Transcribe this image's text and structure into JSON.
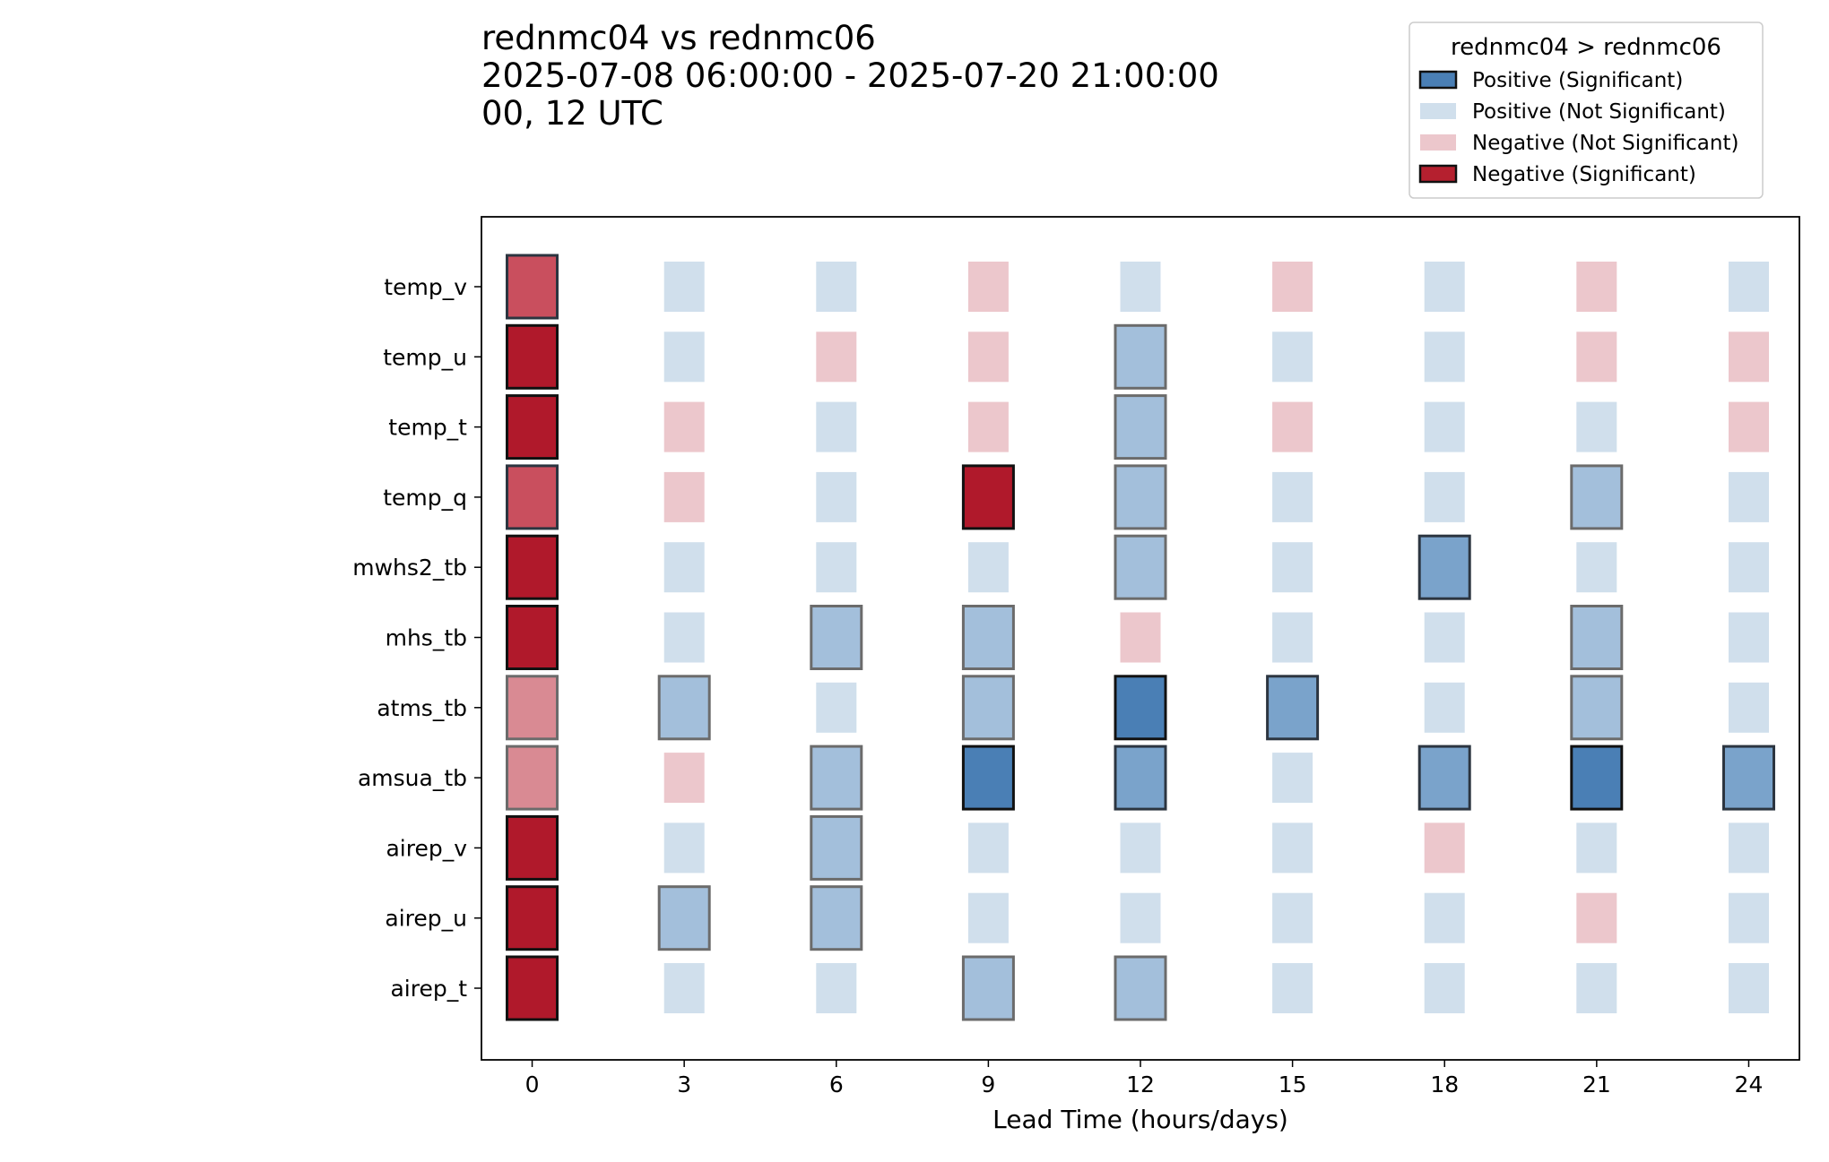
{
  "chart_data": {
    "type": "heatmap",
    "title_lines": [
      "rednmc04 vs rednmc06",
      "2025-07-08 06:00:00 - 2025-07-20 21:00:00",
      "00, 12 UTC"
    ],
    "xlabel": "Lead Time (hours/days)",
    "ylabel": "",
    "x": [
      0,
      3,
      6,
      9,
      12,
      15,
      18,
      21,
      24
    ],
    "x_tick_labels": [
      "0",
      "3",
      "6",
      "9",
      "12",
      "15",
      "18",
      "21",
      "24"
    ],
    "y_categories": [
      "temp_v",
      "temp_u",
      "temp_t",
      "temp_q",
      "mwhs2_tb",
      "mhs_tb",
      "atms_tb",
      "amsua_tb",
      "airep_v",
      "airep_u",
      "airep_t"
    ],
    "legend": {
      "title": "rednmc04 > rednmc06",
      "placement": "top-right",
      "entries": [
        {
          "label": "Positive (Significant)",
          "color": "#4a7fb5",
          "outlined": true
        },
        {
          "label": "Positive (Not Significant)",
          "color": "#d0dfec",
          "outlined": false
        },
        {
          "label": "Negative (Not Significant)",
          "color": "#ecc7cc",
          "outlined": false
        },
        {
          "label": "Negative (Significant)",
          "color": "#b5202f",
          "outlined": true
        }
      ]
    },
    "colors": {
      "positive_significant_strong": "#4a7fb5",
      "positive_significant_mid": "#7aa3cb",
      "positive_significant_weak": "#a3bfdb",
      "positive_not_significant": "#d0dfec",
      "negative_not_significant": "#ecc7cc",
      "negative_significant_weak": "#d98a93",
      "negative_significant_mid": "#c94f5e",
      "negative_significant_strong": "#b0192b"
    },
    "series": [
      {
        "row": "temp_v",
        "values": [
          -0.75,
          0.2,
          0.2,
          -0.2,
          0.2,
          -0.2,
          0.2,
          -0.2,
          0.2
        ]
      },
      {
        "row": "temp_u",
        "values": [
          -1.0,
          0.2,
          -0.2,
          -0.2,
          0.4,
          0.2,
          0.2,
          -0.2,
          -0.2
        ]
      },
      {
        "row": "temp_t",
        "values": [
          -1.0,
          -0.2,
          0.2,
          -0.2,
          0.4,
          -0.2,
          0.2,
          0.2,
          -0.2
        ]
      },
      {
        "row": "temp_q",
        "values": [
          -0.7,
          -0.2,
          0.2,
          -1.0,
          0.4,
          0.2,
          0.2,
          0.55,
          0.2
        ]
      },
      {
        "row": "mwhs2_tb",
        "values": [
          -1.0,
          0.2,
          0.2,
          0.2,
          0.4,
          0.2,
          0.75,
          0.2,
          0.2
        ]
      },
      {
        "row": "mhs_tb",
        "values": [
          -1.0,
          0.2,
          0.4,
          0.45,
          -0.2,
          0.2,
          0.2,
          0.5,
          0.2
        ]
      },
      {
        "row": "atms_tb",
        "values": [
          -0.5,
          0.45,
          0.2,
          0.4,
          1.0,
          0.8,
          0.2,
          0.5,
          0.2
        ]
      },
      {
        "row": "amsua_tb",
        "values": [
          -0.5,
          -0.2,
          0.45,
          0.95,
          0.65,
          0.2,
          0.65,
          1.0,
          0.65
        ]
      },
      {
        "row": "airep_v",
        "values": [
          -1.0,
          0.2,
          0.4,
          0.2,
          0.2,
          0.2,
          -0.2,
          0.2,
          0.2
        ]
      },
      {
        "row": "airep_u",
        "values": [
          -1.0,
          0.4,
          0.4,
          0.2,
          0.2,
          0.2,
          0.2,
          -0.2,
          0.2
        ]
      },
      {
        "row": "airep_t",
        "values": [
          -1.0,
          0.2,
          0.2,
          0.4,
          0.4,
          0.2,
          0.2,
          0.2,
          0.2
        ]
      }
    ],
    "significant": [
      [
        true,
        false,
        false,
        false,
        false,
        false,
        false,
        false,
        false
      ],
      [
        true,
        false,
        false,
        false,
        true,
        false,
        false,
        false,
        false
      ],
      [
        true,
        false,
        false,
        false,
        true,
        false,
        false,
        false,
        false
      ],
      [
        true,
        false,
        false,
        true,
        true,
        false,
        false,
        true,
        false
      ],
      [
        true,
        false,
        false,
        false,
        true,
        false,
        true,
        false,
        false
      ],
      [
        true,
        false,
        true,
        true,
        false,
        false,
        false,
        true,
        false
      ],
      [
        true,
        true,
        false,
        true,
        true,
        true,
        false,
        true,
        false
      ],
      [
        true,
        false,
        true,
        true,
        true,
        false,
        true,
        true,
        true
      ],
      [
        true,
        false,
        true,
        false,
        false,
        false,
        false,
        false,
        false
      ],
      [
        true,
        true,
        true,
        false,
        false,
        false,
        false,
        false,
        false
      ],
      [
        true,
        false,
        false,
        true,
        true,
        false,
        false,
        false,
        false
      ]
    ],
    "xlim": [
      -1,
      25
    ],
    "grid": false
  }
}
